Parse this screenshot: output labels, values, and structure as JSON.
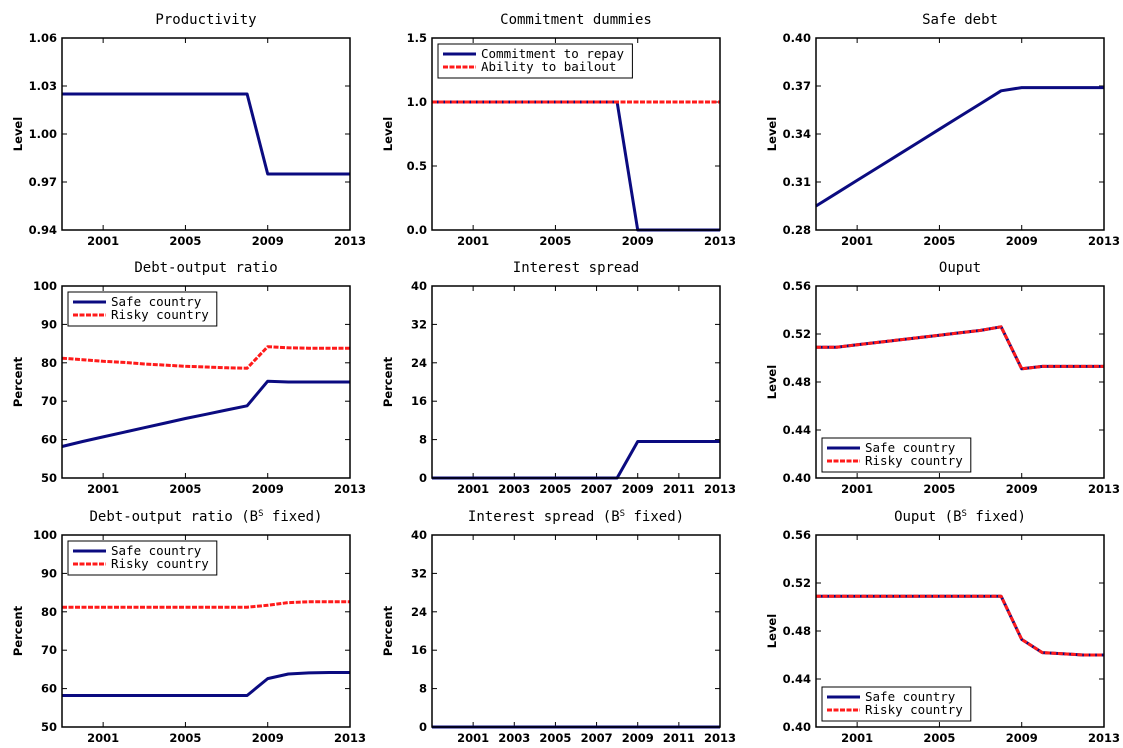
{
  "colors": {
    "blue": "#0b0b80",
    "red": "#ff1a1a"
  },
  "chart_data": [
    {
      "type": "line",
      "title": "Productivity",
      "ylabel": "Level",
      "xlim": [
        1999,
        2013
      ],
      "ylim": [
        0.94,
        1.06
      ],
      "xticks": [
        2001,
        2005,
        2009,
        2013
      ],
      "xtick_labels": [
        "2001",
        "2005",
        "2009",
        "2013"
      ],
      "yticks": [
        0.94,
        0.97,
        1.0,
        1.03,
        1.06
      ],
      "ytick_labels": [
        "0.94",
        "0.97",
        "1.00",
        "1.03",
        "1.06"
      ],
      "series": [
        {
          "color": "blue",
          "dashed": false,
          "x": [
            1999,
            2000,
            2001,
            2002,
            2003,
            2004,
            2005,
            2006,
            2007,
            2008,
            2009,
            2010,
            2011,
            2012,
            2013
          ],
          "y": [
            1.025,
            1.025,
            1.025,
            1.025,
            1.025,
            1.025,
            1.025,
            1.025,
            1.025,
            1.025,
            0.975,
            0.975,
            0.975,
            0.975,
            0.975
          ]
        }
      ],
      "legend": null
    },
    {
      "type": "line",
      "title": "Commitment dummies",
      "ylabel": "Level",
      "xlim": [
        1999,
        2013
      ],
      "ylim": [
        0,
        1.5
      ],
      "xticks": [
        2001,
        2005,
        2009,
        2013
      ],
      "xtick_labels": [
        "2001",
        "2005",
        "2009",
        "2013"
      ],
      "yticks": [
        0,
        0.5,
        1.0,
        1.5
      ],
      "ytick_labels": [
        "0.0",
        "0.5",
        "1.0",
        "1.5"
      ],
      "series": [
        {
          "color": "blue",
          "dashed": false,
          "x": [
            1999,
            2000,
            2001,
            2002,
            2003,
            2004,
            2005,
            2006,
            2007,
            2008,
            2009,
            2010,
            2011,
            2012,
            2013
          ],
          "y": [
            1,
            1,
            1,
            1,
            1,
            1,
            1,
            1,
            1,
            1,
            0,
            0,
            0,
            0,
            0
          ]
        },
        {
          "color": "red",
          "dashed": true,
          "x": [
            1999,
            2000,
            2001,
            2002,
            2003,
            2004,
            2005,
            2006,
            2007,
            2008,
            2009,
            2010,
            2011,
            2012,
            2013
          ],
          "y": [
            1,
            1,
            1,
            1,
            1,
            1,
            1,
            1,
            1,
            1,
            1,
            1,
            1,
            1,
            1
          ]
        }
      ],
      "legend": {
        "position": "top-left",
        "entries": [
          {
            "label": "Commitment to repay",
            "color": "blue",
            "dashed": false
          },
          {
            "label": "Ability to bailout",
            "color": "red",
            "dashed": true
          }
        ]
      }
    },
    {
      "type": "line",
      "title": "Safe debt",
      "ylabel": "Level",
      "xlim": [
        1999,
        2013
      ],
      "ylim": [
        0.28,
        0.4
      ],
      "xticks": [
        2001,
        2005,
        2009,
        2013
      ],
      "xtick_labels": [
        "2001",
        "2005",
        "2009",
        "2013"
      ],
      "yticks": [
        0.28,
        0.31,
        0.34,
        0.37,
        0.4
      ],
      "ytick_labels": [
        "0.28",
        "0.31",
        "0.34",
        "0.37",
        "0.40"
      ],
      "series": [
        {
          "color": "blue",
          "dashed": false,
          "x": [
            1999,
            2000,
            2001,
            2002,
            2003,
            2004,
            2005,
            2006,
            2007,
            2008,
            2009,
            2010,
            2011,
            2012,
            2013
          ],
          "y": [
            0.295,
            0.303,
            0.311,
            0.319,
            0.327,
            0.335,
            0.343,
            0.351,
            0.359,
            0.367,
            0.369,
            0.369,
            0.369,
            0.369,
            0.369
          ]
        }
      ],
      "legend": null
    },
    {
      "type": "line",
      "title": "Debt-output ratio",
      "ylabel": "Percent",
      "xlim": [
        1999,
        2013
      ],
      "ylim": [
        50,
        100
      ],
      "xticks": [
        2001,
        2005,
        2009,
        2013
      ],
      "xtick_labels": [
        "2001",
        "2005",
        "2009",
        "2013"
      ],
      "yticks": [
        50,
        60,
        70,
        80,
        90,
        100
      ],
      "ytick_labels": [
        "50",
        "60",
        "70",
        "80",
        "90",
        "100"
      ],
      "series": [
        {
          "color": "blue",
          "dashed": false,
          "x": [
            1999,
            2000,
            2001,
            2002,
            2003,
            2004,
            2005,
            2006,
            2007,
            2008,
            2009,
            2010,
            2011,
            2012,
            2013
          ],
          "y": [
            58.2,
            59.5,
            60.7,
            61.9,
            63.1,
            64.3,
            65.5,
            66.6,
            67.7,
            68.8,
            75.2,
            75.0,
            75.0,
            75.0,
            75.0
          ]
        },
        {
          "color": "red",
          "dashed": true,
          "x": [
            1999,
            2000,
            2001,
            2002,
            2003,
            2004,
            2005,
            2006,
            2007,
            2008,
            2009,
            2010,
            2011,
            2012,
            2013
          ],
          "y": [
            81.2,
            80.8,
            80.4,
            80.1,
            79.7,
            79.4,
            79.1,
            78.9,
            78.7,
            78.6,
            84.2,
            83.9,
            83.8,
            83.8,
            83.8
          ]
        }
      ],
      "legend": {
        "position": "top-left",
        "entries": [
          {
            "label": "Safe country",
            "color": "blue",
            "dashed": false
          },
          {
            "label": "Risky country",
            "color": "red",
            "dashed": true
          }
        ]
      }
    },
    {
      "type": "line",
      "title": "Interest spread",
      "ylabel": "Percent",
      "xlim": [
        1999,
        2013
      ],
      "ylim": [
        0,
        40
      ],
      "xticks": [
        2001,
        2003,
        2005,
        2007,
        2009,
        2011,
        2013
      ],
      "xtick_labels": [
        "2001",
        "2003",
        "2005",
        "2007",
        "2009",
        "2011",
        "2013"
      ],
      "yticks": [
        0,
        8,
        16,
        24,
        32,
        40
      ],
      "ytick_labels": [
        "0",
        "8",
        "16",
        "24",
        "32",
        "40"
      ],
      "series": [
        {
          "color": "blue",
          "dashed": false,
          "x": [
            1999,
            2000,
            2001,
            2002,
            2003,
            2004,
            2005,
            2006,
            2007,
            2008,
            2009,
            2010,
            2011,
            2012,
            2013
          ],
          "y": [
            0,
            0,
            0,
            0,
            0,
            0,
            0,
            0,
            0,
            0,
            7.6,
            7.6,
            7.6,
            7.6,
            7.6
          ]
        }
      ],
      "legend": null
    },
    {
      "type": "line",
      "title": "Ouput",
      "ylabel": "Level",
      "xlim": [
        1999,
        2013
      ],
      "ylim": [
        0.4,
        0.56
      ],
      "xticks": [
        2001,
        2005,
        2009,
        2013
      ],
      "xtick_labels": [
        "2001",
        "2005",
        "2009",
        "2013"
      ],
      "yticks": [
        0.4,
        0.44,
        0.48,
        0.52,
        0.56
      ],
      "ytick_labels": [
        "0.40",
        "0.44",
        "0.48",
        "0.52",
        "0.56"
      ],
      "series": [
        {
          "color": "blue",
          "dashed": false,
          "x": [
            1999,
            2000,
            2001,
            2002,
            2003,
            2004,
            2005,
            2006,
            2007,
            2008,
            2009,
            2010,
            2011,
            2012,
            2013
          ],
          "y": [
            0.509,
            0.509,
            0.511,
            0.513,
            0.515,
            0.517,
            0.519,
            0.521,
            0.523,
            0.526,
            0.491,
            0.493,
            0.493,
            0.493,
            0.493
          ]
        },
        {
          "color": "red",
          "dashed": true,
          "x": [
            1999,
            2000,
            2001,
            2002,
            2003,
            2004,
            2005,
            2006,
            2007,
            2008,
            2009,
            2010,
            2011,
            2012,
            2013
          ],
          "y": [
            0.509,
            0.509,
            0.511,
            0.513,
            0.515,
            0.517,
            0.519,
            0.521,
            0.523,
            0.526,
            0.491,
            0.493,
            0.493,
            0.493,
            0.493
          ]
        }
      ],
      "legend": {
        "position": "bottom-left",
        "entries": [
          {
            "label": "Safe country",
            "color": "blue",
            "dashed": false
          },
          {
            "label": "Risky country",
            "color": "red",
            "dashed": true
          }
        ]
      }
    },
    {
      "type": "line",
      "title": "Debt-output ratio (B",
      "title_sup": "S",
      "title_tail": " fixed)",
      "ylabel": "Percent",
      "xlim": [
        1999,
        2013
      ],
      "ylim": [
        50,
        100
      ],
      "xticks": [
        2001,
        2005,
        2009,
        2013
      ],
      "xtick_labels": [
        "2001",
        "2005",
        "2009",
        "2013"
      ],
      "yticks": [
        50,
        60,
        70,
        80,
        90,
        100
      ],
      "ytick_labels": [
        "50",
        "60",
        "70",
        "80",
        "90",
        "100"
      ],
      "series": [
        {
          "color": "blue",
          "dashed": false,
          "x": [
            1999,
            2000,
            2001,
            2002,
            2003,
            2004,
            2005,
            2006,
            2007,
            2008,
            2009,
            2010,
            2011,
            2012,
            2013
          ],
          "y": [
            58.2,
            58.2,
            58.2,
            58.2,
            58.2,
            58.2,
            58.2,
            58.2,
            58.2,
            58.2,
            62.6,
            63.8,
            64.1,
            64.2,
            64.2
          ]
        },
        {
          "color": "red",
          "dashed": true,
          "x": [
            1999,
            2000,
            2001,
            2002,
            2003,
            2004,
            2005,
            2006,
            2007,
            2008,
            2009,
            2010,
            2011,
            2012,
            2013
          ],
          "y": [
            81.2,
            81.2,
            81.2,
            81.2,
            81.2,
            81.2,
            81.2,
            81.2,
            81.2,
            81.2,
            81.7,
            82.4,
            82.6,
            82.6,
            82.6
          ]
        }
      ],
      "legend": {
        "position": "top-left",
        "entries": [
          {
            "label": "Safe country",
            "color": "blue",
            "dashed": false
          },
          {
            "label": "Risky country",
            "color": "red",
            "dashed": true
          }
        ]
      }
    },
    {
      "type": "line",
      "title": "Interest spread (B",
      "title_sup": "S",
      "title_tail": " fixed)",
      "ylabel": "Percent",
      "xlim": [
        1999,
        2013
      ],
      "ylim": [
        0,
        40
      ],
      "xticks": [
        2001,
        2003,
        2005,
        2007,
        2009,
        2011,
        2013
      ],
      "xtick_labels": [
        "2001",
        "2003",
        "2005",
        "2007",
        "2009",
        "2011",
        "2013"
      ],
      "yticks": [
        0,
        8,
        16,
        24,
        32,
        40
      ],
      "ytick_labels": [
        "0",
        "8",
        "16",
        "24",
        "32",
        "40"
      ],
      "series": [
        {
          "color": "blue",
          "dashed": false,
          "x": [
            1999,
            2000,
            2001,
            2002,
            2003,
            2004,
            2005,
            2006,
            2007,
            2008,
            2009,
            2010,
            2011,
            2012,
            2013
          ],
          "y": [
            0,
            0,
            0,
            0,
            0,
            0,
            0,
            0,
            0,
            0,
            0,
            0,
            0,
            0,
            0
          ]
        }
      ],
      "legend": null
    },
    {
      "type": "line",
      "title": "Ouput (B",
      "title_sup": "S",
      "title_tail": " fixed)",
      "ylabel": "Level",
      "xlim": [
        1999,
        2013
      ],
      "ylim": [
        0.4,
        0.56
      ],
      "xticks": [
        2001,
        2005,
        2009,
        2013
      ],
      "xtick_labels": [
        "2001",
        "2005",
        "2009",
        "2013"
      ],
      "yticks": [
        0.4,
        0.44,
        0.48,
        0.52,
        0.56
      ],
      "ytick_labels": [
        "0.40",
        "0.44",
        "0.48",
        "0.52",
        "0.56"
      ],
      "series": [
        {
          "color": "blue",
          "dashed": false,
          "x": [
            1999,
            2000,
            2001,
            2002,
            2003,
            2004,
            2005,
            2006,
            2007,
            2008,
            2009,
            2010,
            2011,
            2012,
            2013
          ],
          "y": [
            0.509,
            0.509,
            0.509,
            0.509,
            0.509,
            0.509,
            0.509,
            0.509,
            0.509,
            0.509,
            0.473,
            0.462,
            0.461,
            0.46,
            0.46
          ]
        },
        {
          "color": "red",
          "dashed": true,
          "x": [
            1999,
            2000,
            2001,
            2002,
            2003,
            2004,
            2005,
            2006,
            2007,
            2008,
            2009,
            2010,
            2011,
            2012,
            2013
          ],
          "y": [
            0.509,
            0.509,
            0.509,
            0.509,
            0.509,
            0.509,
            0.509,
            0.509,
            0.509,
            0.509,
            0.473,
            0.462,
            0.461,
            0.46,
            0.46
          ]
        }
      ],
      "legend": {
        "position": "bottom-left",
        "entries": [
          {
            "label": "Safe country",
            "color": "blue",
            "dashed": false
          },
          {
            "label": "Risky country",
            "color": "red",
            "dashed": true
          }
        ]
      }
    }
  ]
}
